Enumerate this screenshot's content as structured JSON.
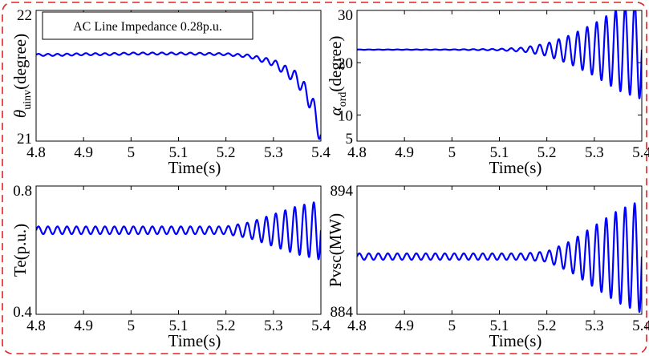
{
  "colors": {
    "series": "#0000ff",
    "outer_border": "#e02424",
    "axes": "#000000"
  },
  "chart_data": [
    {
      "type": "line",
      "title": "",
      "annotation": "AC Line Impedance 0.28p.u.",
      "xlabel": "Time(s)",
      "ylabel": {
        "base": "θ",
        "sub": "uinv",
        "rest": "(degree)"
      },
      "xlim": [
        4.8,
        5.4
      ],
      "ylim": [
        21,
        22
      ],
      "x_ticks": [
        "4.8",
        "4.9",
        "5",
        "5.1",
        "5.2",
        "5.3",
        "5.4"
      ],
      "y_ticks": [
        {
          "value": 22,
          "label": "22"
        },
        {
          "value": 21,
          "label": "21"
        }
      ],
      "grid": false,
      "series": [
        {
          "color": "#0000ff",
          "x": [
            4.8,
            4.85,
            4.9,
            4.95,
            5.0,
            5.05,
            5.1,
            5.15,
            5.2,
            5.25,
            5.3,
            5.35,
            5.38,
            5.4
          ],
          "y": [
            21.66,
            21.66,
            21.665,
            21.665,
            21.67,
            21.67,
            21.67,
            21.668,
            21.665,
            21.65,
            21.6,
            21.48,
            21.3,
            21.05
          ],
          "oscillation": {
            "freq_hz": 50,
            "x": [
              4.8,
              5.0,
              5.2,
              5.25,
              5.3,
              5.35,
              5.4
            ],
            "amp": [
              0.008,
              0.008,
              0.008,
              0.012,
              0.025,
              0.05,
              0.09
            ]
          }
        }
      ]
    },
    {
      "type": "line",
      "title": "",
      "annotation": "",
      "xlabel": "Time(s)",
      "ylabel": {
        "base": "α",
        "sub": "ord",
        "rest": "(degree)"
      },
      "xlim": [
        4.8,
        5.4
      ],
      "ylim": [
        5,
        30
      ],
      "x_ticks": [
        "4.8",
        "4.9",
        "5",
        "5.1",
        "5.2",
        "5.3",
        "5.4"
      ],
      "y_ticks": [
        {
          "value": 30,
          "label": "30"
        },
        {
          "value": 20,
          "label": "20"
        },
        {
          "value": 10,
          "label": "10"
        },
        {
          "value": 5,
          "label": "5"
        }
      ],
      "grid": false,
      "series": [
        {
          "color": "#0000ff",
          "x": [
            4.8,
            5.4
          ],
          "y": [
            22.5,
            22.5
          ],
          "oscillation": {
            "freq_hz": 50,
            "x": [
              4.8,
              5.0,
              5.1,
              5.15,
              5.2,
              5.25,
              5.3,
              5.35,
              5.4
            ],
            "amp": [
              0.03,
              0.05,
              0.15,
              0.4,
              1.2,
              2.8,
              5.0,
              7.8,
              9.5
            ]
          }
        }
      ]
    },
    {
      "type": "line",
      "title": "",
      "annotation": "",
      "xlabel": "Time(s)",
      "ylabel": {
        "base": "Te(p.u.)",
        "sub": "",
        "rest": ""
      },
      "xlim": [
        4.8,
        5.4
      ],
      "ylim": [
        0.4,
        0.8
      ],
      "x_ticks": [
        "4.8",
        "4.9",
        "5",
        "5.1",
        "5.2",
        "5.3",
        "5.4"
      ],
      "y_ticks": [
        {
          "value": 0.8,
          "label": "0.8"
        },
        {
          "value": 0.4,
          "label": "0.4"
        }
      ],
      "grid": false,
      "series": [
        {
          "color": "#0000ff",
          "x": [
            4.8,
            5.4
          ],
          "y": [
            0.662,
            0.662
          ],
          "oscillation": {
            "freq_hz": 50,
            "x": [
              4.8,
              5.2,
              5.25,
              5.3,
              5.35,
              5.4
            ],
            "amp": [
              0.012,
              0.012,
              0.025,
              0.05,
              0.075,
              0.092
            ]
          }
        }
      ]
    },
    {
      "type": "line",
      "title": "",
      "annotation": "",
      "xlabel": "Time(s)",
      "ylabel": {
        "base": "Pvsc(MW)",
        "sub": "",
        "rest": ""
      },
      "xlim": [
        4.8,
        5.4
      ],
      "ylim": [
        884,
        894
      ],
      "x_ticks": [
        "4.8",
        "4.9",
        "5",
        "5.1",
        "5.2",
        "5.3",
        "5.4"
      ],
      "y_ticks": [
        {
          "value": 894,
          "label": "894"
        },
        {
          "value": 884,
          "label": "884"
        }
      ],
      "grid": false,
      "series": [
        {
          "color": "#0000ff",
          "x": [
            4.8,
            5.4
          ],
          "y": [
            888.5,
            888.5
          ],
          "oscillation": {
            "freq_hz": 50,
            "x": [
              4.8,
              5.15,
              5.2,
              5.25,
              5.3,
              5.35,
              5.4
            ],
            "amp": [
              0.25,
              0.25,
              0.4,
              1.2,
              2.4,
              3.6,
              4.4
            ]
          }
        }
      ]
    }
  ]
}
